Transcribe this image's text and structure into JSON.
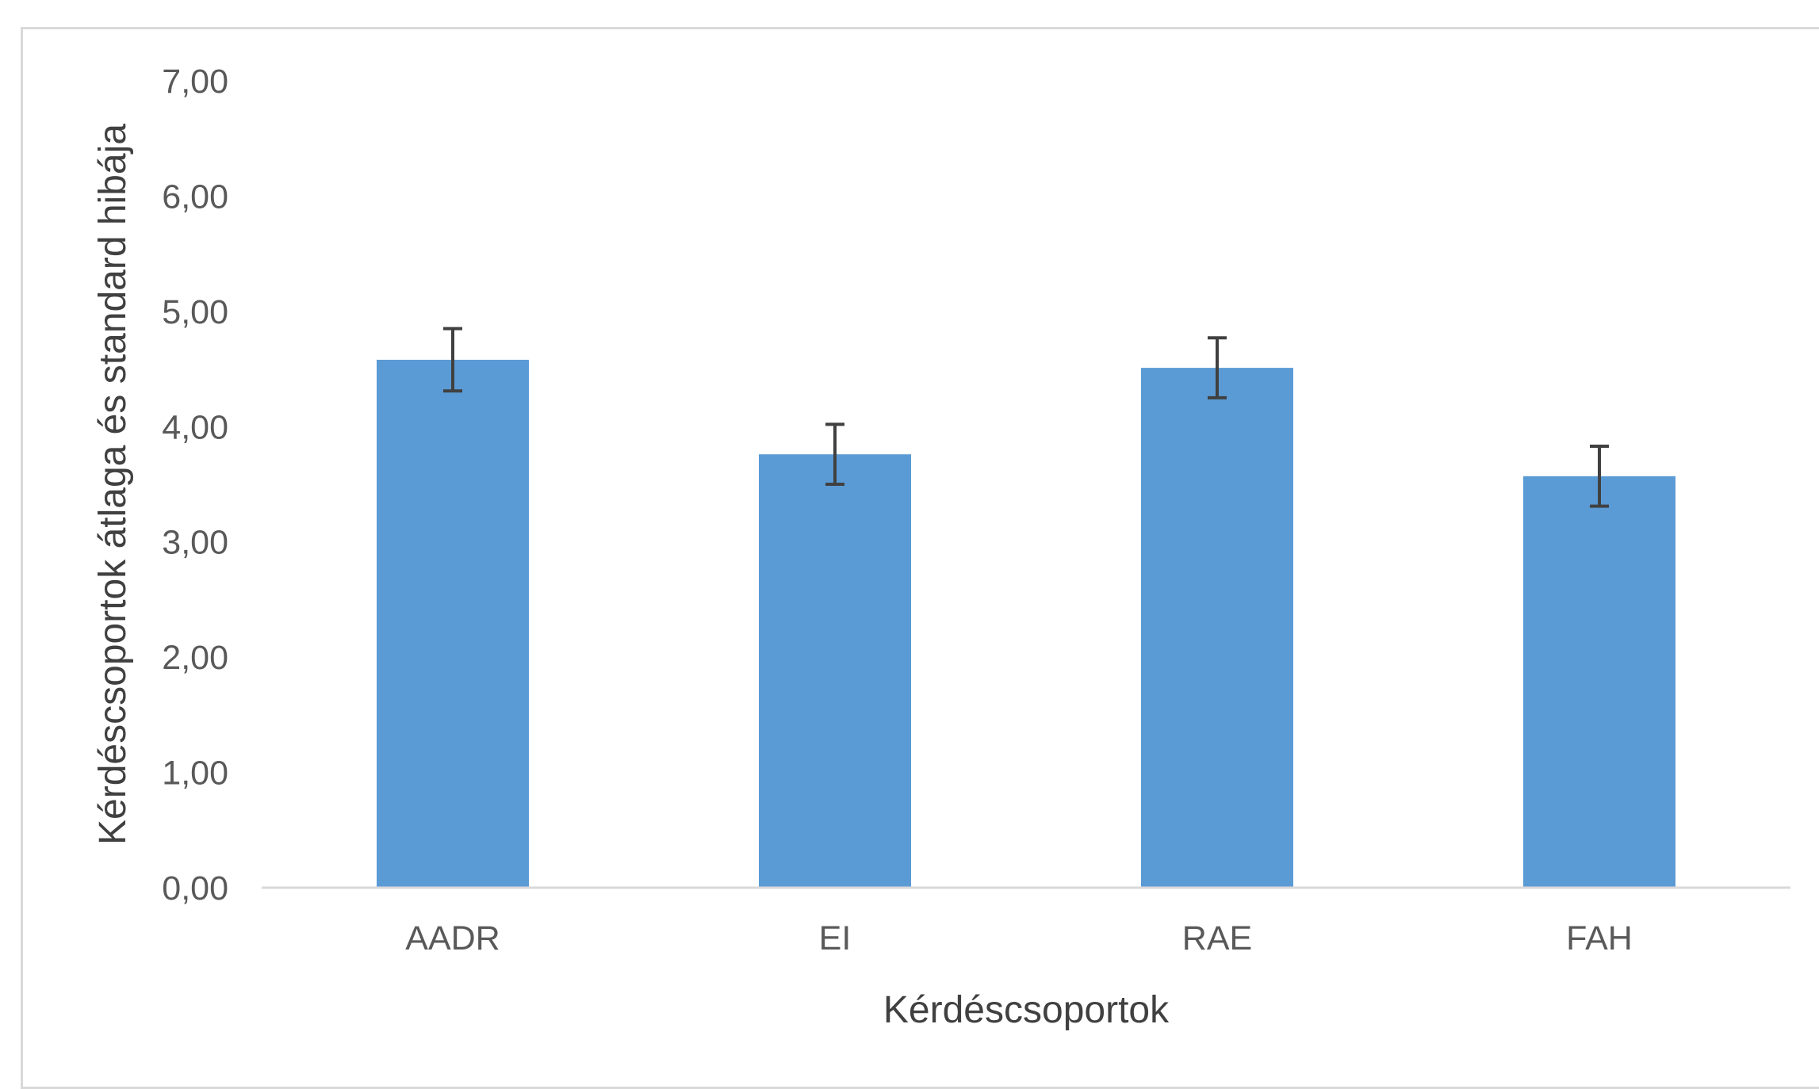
{
  "chart_data": {
    "type": "bar",
    "categories": [
      "AADR",
      "EI",
      "RAE",
      "FAH"
    ],
    "values": [
      4.58,
      3.76,
      4.51,
      3.57
    ],
    "errors": [
      0.27,
      0.26,
      0.26,
      0.26
    ],
    "title": "",
    "xlabel": "Kérdéscsoportok",
    "ylabel": "Kérdéscsoportok átlaga és standard hibája",
    "ylim": [
      0,
      7
    ],
    "yticks": [
      0,
      1,
      2,
      3,
      4,
      5,
      6,
      7
    ],
    "ytick_labels": [
      "0,00",
      "1,00",
      "2,00",
      "3,00",
      "4,00",
      "5,00",
      "6,00",
      "7,00"
    ],
    "grid": false,
    "legend": "none",
    "colors": {
      "bar": "#5b9bd5",
      "error_bar": "#404040",
      "axis": "#d9d9d9"
    }
  }
}
